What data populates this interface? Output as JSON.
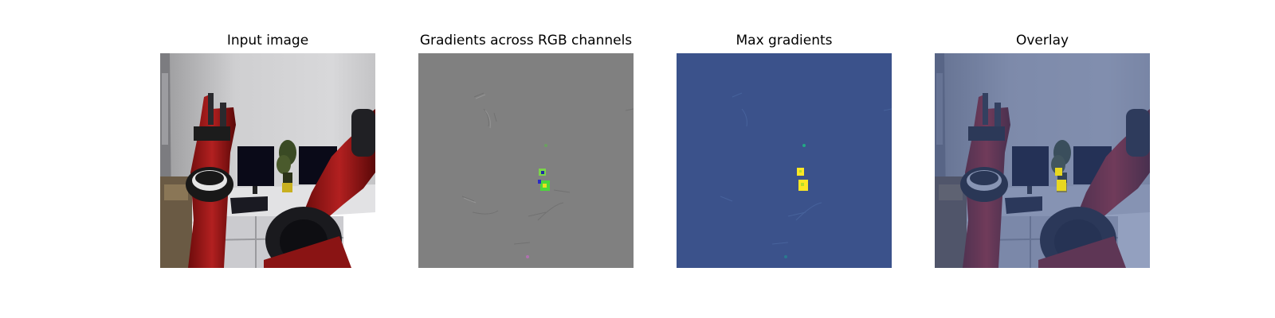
{
  "panels": [
    {
      "title": "Input image"
    },
    {
      "title": "Gradients across RGB channels"
    },
    {
      "title": "Max gradients"
    },
    {
      "title": "Overlay"
    }
  ],
  "colors": {
    "gradient_background": "#808080",
    "max_gradient_background": "#3b528b",
    "overlay_tint": "#3b528b",
    "robot_red": "#a01818",
    "highlight_yellow": "#fde725"
  }
}
